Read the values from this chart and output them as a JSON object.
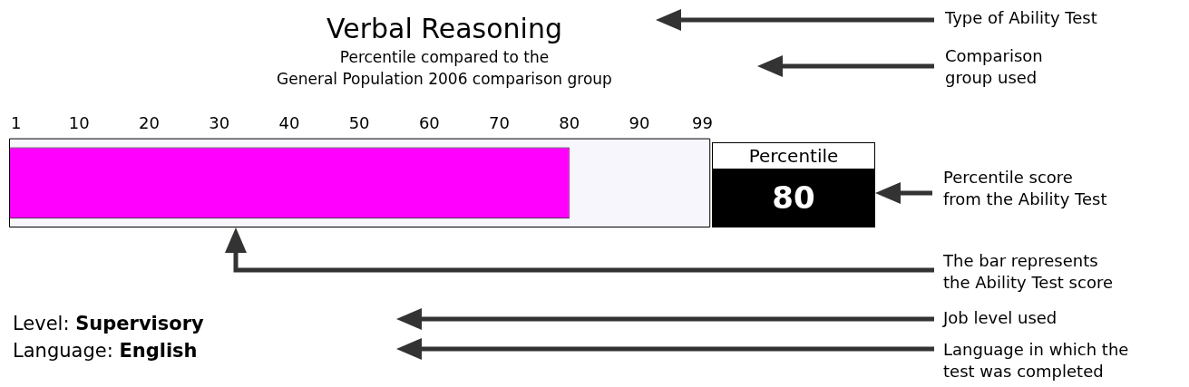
{
  "chart_data": {
    "type": "bar",
    "orientation": "horizontal",
    "title": "Verbal Reasoning",
    "subtitle": "Percentile compared to the\nGeneral Population 2006 comparison group",
    "categories": [
      null
    ],
    "values": [
      80
    ],
    "color": "#ff00ff",
    "xlim": [
      0,
      100
    ],
    "xticks": [
      1,
      10,
      20,
      30,
      40,
      50,
      60,
      70,
      80,
      90,
      99
    ],
    "legend": false,
    "annotations": [
      "Percentile",
      "80",
      "Type of Ability Test",
      "Comparison\ngroup used",
      "Percentile score\nfrom the Ability Test",
      "The bar represents\nthe Ability Test score",
      "Job level used",
      "Language in which the\ntest was completed",
      "Level: Supervisory",
      "Language: English"
    ]
  }
}
